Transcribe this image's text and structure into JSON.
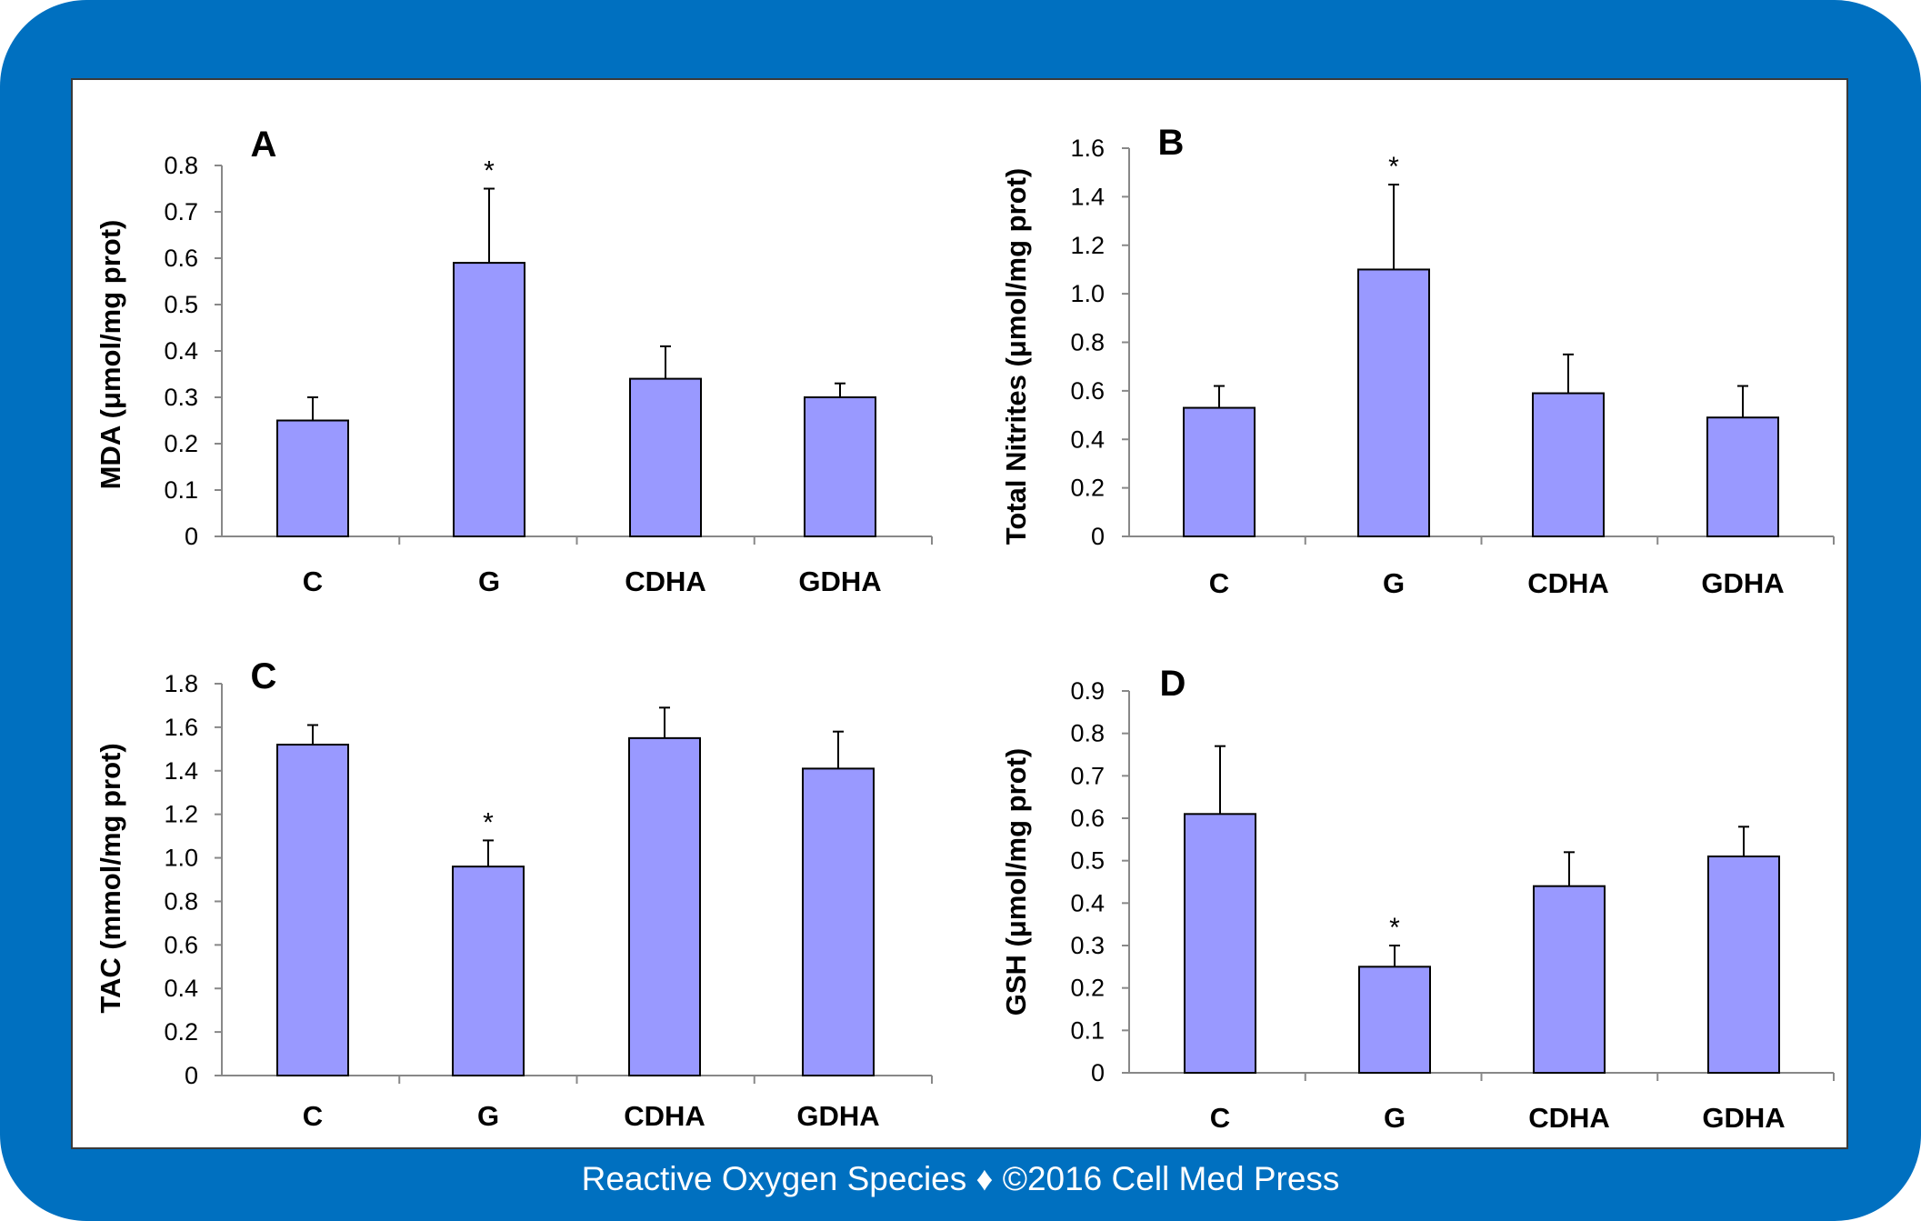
{
  "colors": {
    "frame": "#0070c0",
    "bar_fill": "#9999ff",
    "bar_stroke": "#000000"
  },
  "footer": {
    "text": "Reactive Oxygen Species ♦ ©2016 Cell Med Press"
  },
  "chart_data": [
    {
      "type": "bar",
      "panel_label": "A",
      "ylabel": "MDA (μmol/mg prot)",
      "categories": [
        "C",
        "G",
        "CDHA",
        "GDHA"
      ],
      "values": [
        0.25,
        0.59,
        0.34,
        0.3
      ],
      "error": [
        0.05,
        0.16,
        0.07,
        0.03
      ],
      "significance": [
        "",
        "*",
        "",
        ""
      ],
      "ylim": [
        0,
        0.8
      ],
      "ytick_values": [
        0,
        0.1,
        0.2,
        0.3,
        0.4,
        0.5,
        0.6,
        0.7,
        0.8
      ],
      "yticks": [
        "0",
        "0.1",
        "0.2",
        "0.3",
        "0.4",
        "0.5",
        "0.6",
        "0.7",
        "0.8"
      ]
    },
    {
      "type": "bar",
      "panel_label": "B",
      "ylabel": "Total Nitrites (μmol/mg prot)",
      "categories": [
        "C",
        "G",
        "CDHA",
        "GDHA"
      ],
      "values": [
        0.53,
        1.1,
        0.59,
        0.49
      ],
      "error": [
        0.09,
        0.35,
        0.16,
        0.13
      ],
      "significance": [
        "",
        "*",
        "",
        ""
      ],
      "ylim": [
        0,
        1.6
      ],
      "ytick_values": [
        0,
        0.2,
        0.4,
        0.6,
        0.8,
        1.0,
        1.2,
        1.4,
        1.6
      ],
      "yticks": [
        "0",
        "0.2",
        "0.4",
        "0.6",
        "0.8",
        "1.0",
        "1.2",
        "1.4",
        "1.6"
      ]
    },
    {
      "type": "bar",
      "panel_label": "C",
      "ylabel": "TAC (mmol/mg prot)",
      "categories": [
        "C",
        "G",
        "CDHA",
        "GDHA"
      ],
      "values": [
        1.52,
        0.96,
        1.55,
        1.41
      ],
      "error": [
        0.09,
        0.12,
        0.14,
        0.17
      ],
      "significance": [
        "",
        "*",
        "",
        ""
      ],
      "ylim": [
        0,
        1.8
      ],
      "ytick_values": [
        0,
        0.2,
        0.4,
        0.6,
        0.8,
        1.0,
        1.2,
        1.4,
        1.6,
        1.8
      ],
      "yticks": [
        "0",
        "0.2",
        "0.4",
        "0.6",
        "0.8",
        "1.0",
        "1.2",
        "1.4",
        "1.6",
        "1.8"
      ]
    },
    {
      "type": "bar",
      "panel_label": "D",
      "ylabel": "GSH (μmol/mg prot)",
      "categories": [
        "C",
        "G",
        "CDHA",
        "GDHA"
      ],
      "values": [
        0.61,
        0.25,
        0.44,
        0.51
      ],
      "error": [
        0.16,
        0.05,
        0.08,
        0.07
      ],
      "significance": [
        "",
        "*",
        "",
        ""
      ],
      "ylim": [
        0,
        0.9
      ],
      "ytick_values": [
        0,
        0.1,
        0.2,
        0.3,
        0.4,
        0.5,
        0.6,
        0.7,
        0.8,
        0.9
      ],
      "yticks": [
        "0",
        "0.1",
        "0.2",
        "0.3",
        "0.4",
        "0.5",
        "0.6",
        "0.7",
        "0.8",
        "0.9"
      ]
    }
  ]
}
